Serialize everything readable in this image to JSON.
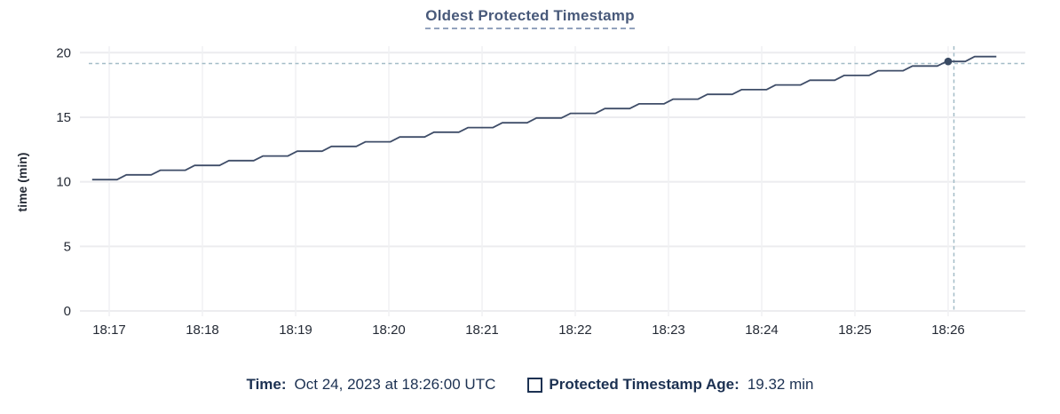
{
  "title": "Oldest Protected Timestamp",
  "legend": {
    "time_label": "Time:",
    "time_value": "Oct 24, 2023 at 18:26:00 UTC",
    "series_label": "Protected Timestamp Age:",
    "series_value": "19.32 min"
  },
  "colors": {
    "title": "#48597a",
    "axis_text": "#242a35",
    "line": "#3f4d68",
    "dot": "#394a63",
    "grid_horizontal": "#ececef",
    "grid_vertical": "#f0f1f3",
    "crosshair": "#a3bcc7",
    "legend_text": "#1c3152"
  },
  "chart_data": {
    "type": "line",
    "title": "Oldest Protected Timestamp",
    "xlabel": "",
    "ylabel": "time (min)",
    "ylim": [
      0,
      20
    ],
    "yticks": [
      0,
      5,
      10,
      15,
      20
    ],
    "xticks": [
      "18:17",
      "18:18",
      "18:19",
      "18:20",
      "18:21",
      "18:22",
      "18:23",
      "18:24",
      "18:25",
      "18:26"
    ],
    "x_seconds_per_tick": 60,
    "x_range_seconds": [
      -19,
      590
    ],
    "grid": true,
    "legend_position": "bottom",
    "series": [
      {
        "name": "Protected Timestamp Age",
        "units": "min",
        "points": [
          [
            -11,
            10.17
          ],
          [
            5,
            10.17
          ],
          [
            11,
            10.54
          ],
          [
            27,
            10.54
          ],
          [
            33,
            10.9
          ],
          [
            49,
            10.9
          ],
          [
            55,
            11.27
          ],
          [
            71,
            11.27
          ],
          [
            77,
            11.64
          ],
          [
            93,
            11.64
          ],
          [
            99,
            12.0
          ],
          [
            115,
            12.0
          ],
          [
            121,
            12.37
          ],
          [
            137,
            12.37
          ],
          [
            143,
            12.74
          ],
          [
            159,
            12.74
          ],
          [
            165,
            13.1
          ],
          [
            181,
            13.1
          ],
          [
            187,
            13.47
          ],
          [
            203,
            13.47
          ],
          [
            209,
            13.84
          ],
          [
            225,
            13.84
          ],
          [
            231,
            14.2
          ],
          [
            247,
            14.2
          ],
          [
            253,
            14.57
          ],
          [
            269,
            14.57
          ],
          [
            275,
            14.94
          ],
          [
            291,
            14.94
          ],
          [
            297,
            15.3
          ],
          [
            313,
            15.3
          ],
          [
            319,
            15.67
          ],
          [
            335,
            15.67
          ],
          [
            341,
            16.04
          ],
          [
            357,
            16.04
          ],
          [
            363,
            16.4
          ],
          [
            379,
            16.4
          ],
          [
            385,
            16.77
          ],
          [
            401,
            16.77
          ],
          [
            407,
            17.14
          ],
          [
            423,
            17.14
          ],
          [
            429,
            17.5
          ],
          [
            445,
            17.5
          ],
          [
            451,
            17.87
          ],
          [
            467,
            17.87
          ],
          [
            473,
            18.24
          ],
          [
            489,
            18.24
          ],
          [
            495,
            18.6
          ],
          [
            511,
            18.6
          ],
          [
            517,
            18.97
          ],
          [
            533,
            18.97
          ],
          [
            539,
            19.32
          ],
          [
            551,
            19.32
          ],
          [
            557,
            19.7
          ],
          [
            571,
            19.7
          ]
        ]
      }
    ],
    "hover": {
      "t_sec": 540,
      "value": 19.32,
      "time_label": "Oct 24, 2023 at 18:26:00 UTC",
      "value_label": "19.32 min"
    }
  }
}
